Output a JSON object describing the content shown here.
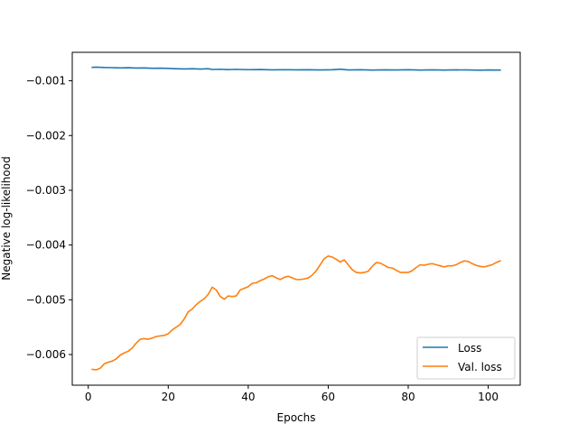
{
  "chart_data": {
    "type": "line",
    "title": "",
    "xlabel": "Epochs",
    "ylabel": "Negative log-likelihood",
    "xlim": [
      -4,
      108
    ],
    "ylim": [
      -0.00656,
      -0.00048
    ],
    "xticks": [
      0,
      20,
      40,
      60,
      80,
      100
    ],
    "xtick_labels": [
      "0",
      "20",
      "40",
      "60",
      "80",
      "100"
    ],
    "yticks": [
      -0.001,
      -0.002,
      -0.003,
      -0.004,
      -0.005,
      -0.006
    ],
    "ytick_labels": [
      "−0.001",
      "−0.002",
      "−0.003",
      "−0.004",
      "−0.005",
      "−0.006"
    ],
    "grid": false,
    "legend_position": "lower right",
    "series": [
      {
        "name": "Loss",
        "color": "#1f77b4",
        "points": [
          [
            1,
            -0.000755
          ],
          [
            2,
            -0.00075
          ],
          [
            4,
            -0.000757
          ],
          [
            6,
            -0.00076
          ],
          [
            8,
            -0.000764
          ],
          [
            10,
            -0.000762
          ],
          [
            12,
            -0.000767
          ],
          [
            14,
            -0.000765
          ],
          [
            16,
            -0.000771
          ],
          [
            18,
            -0.000769
          ],
          [
            20,
            -0.000774
          ],
          [
            22,
            -0.00078
          ],
          [
            24,
            -0.000784
          ],
          [
            26,
            -0.000779
          ],
          [
            28,
            -0.000786
          ],
          [
            30,
            -0.00078
          ],
          [
            31,
            -0.000793
          ],
          [
            33,
            -0.000789
          ],
          [
            35,
            -0.000796
          ],
          [
            37,
            -0.000791
          ],
          [
            40,
            -0.000797
          ],
          [
            43,
            -0.000794
          ],
          [
            46,
            -0.0008
          ],
          [
            49,
            -0.000797
          ],
          [
            52,
            -0.000801
          ],
          [
            55,
            -0.000799
          ],
          [
            58,
            -0.000803
          ],
          [
            61,
            -0.000798
          ],
          [
            63,
            -0.000788
          ],
          [
            65,
            -0.000802
          ],
          [
            68,
            -0.000799
          ],
          [
            71,
            -0.000804
          ],
          [
            74,
            -0.0008
          ],
          [
            77,
            -0.000803
          ],
          [
            80,
            -0.000799
          ],
          [
            83,
            -0.000804
          ],
          [
            86,
            -0.0008
          ],
          [
            89,
            -0.000805
          ],
          [
            92,
            -0.000801
          ],
          [
            95,
            -0.000803
          ],
          [
            98,
            -0.000806
          ],
          [
            100,
            -0.000802
          ],
          [
            103,
            -0.000805
          ]
        ]
      },
      {
        "name": "Val. loss",
        "color": "#ff7f0e",
        "points": [
          [
            1,
            -0.00627
          ],
          [
            2,
            -0.00628
          ],
          [
            3,
            -0.00625
          ],
          [
            4,
            -0.00617
          ],
          [
            5,
            -0.00614
          ],
          [
            6,
            -0.00612
          ],
          [
            7,
            -0.00608
          ],
          [
            8,
            -0.00601
          ],
          [
            9,
            -0.00597
          ],
          [
            10,
            -0.00594
          ],
          [
            11,
            -0.00588
          ],
          [
            12,
            -0.00579
          ],
          [
            13,
            -0.00572
          ],
          [
            14,
            -0.00571
          ],
          [
            15,
            -0.00572
          ],
          [
            16,
            -0.0057
          ],
          [
            17,
            -0.00567
          ],
          [
            18,
            -0.00566
          ],
          [
            19,
            -0.00565
          ],
          [
            20,
            -0.00562
          ],
          [
            21,
            -0.00555
          ],
          [
            22,
            -0.0055
          ],
          [
            23,
            -0.00545
          ],
          [
            24,
            -0.00535
          ],
          [
            25,
            -0.00522
          ],
          [
            26,
            -0.00517
          ],
          [
            27,
            -0.00509
          ],
          [
            28,
            -0.00503
          ],
          [
            29,
            -0.00498
          ],
          [
            30,
            -0.0049
          ],
          [
            31,
            -0.00477
          ],
          [
            32,
            -0.00482
          ],
          [
            33,
            -0.00494
          ],
          [
            34,
            -0.00499
          ],
          [
            35,
            -0.00493
          ],
          [
            36,
            -0.00494
          ],
          [
            37,
            -0.00493
          ],
          [
            38,
            -0.00482
          ],
          [
            39,
            -0.00479
          ],
          [
            40,
            -0.00476
          ],
          [
            41,
            -0.0047
          ],
          [
            42,
            -0.00469
          ],
          [
            43,
            -0.00465
          ],
          [
            44,
            -0.00462
          ],
          [
            45,
            -0.00458
          ],
          [
            46,
            -0.00456
          ],
          [
            47,
            -0.0046
          ],
          [
            48,
            -0.00463
          ],
          [
            49,
            -0.00459
          ],
          [
            50,
            -0.00457
          ],
          [
            51,
            -0.0046
          ],
          [
            52,
            -0.00463
          ],
          [
            53,
            -0.00463
          ],
          [
            54,
            -0.00462
          ],
          [
            55,
            -0.0046
          ],
          [
            56,
            -0.00455
          ],
          [
            57,
            -0.00447
          ],
          [
            58,
            -0.00436
          ],
          [
            59,
            -0.00425
          ],
          [
            60,
            -0.0042
          ],
          [
            61,
            -0.00422
          ],
          [
            62,
            -0.00426
          ],
          [
            63,
            -0.00431
          ],
          [
            64,
            -0.00427
          ],
          [
            65,
            -0.00436
          ],
          [
            66,
            -0.00445
          ],
          [
            67,
            -0.0045
          ],
          [
            68,
            -0.00451
          ],
          [
            69,
            -0.0045
          ],
          [
            70,
            -0.00448
          ],
          [
            71,
            -0.00439
          ],
          [
            72,
            -0.00432
          ],
          [
            73,
            -0.00433
          ],
          [
            74,
            -0.00437
          ],
          [
            75,
            -0.00441
          ],
          [
            76,
            -0.00442
          ],
          [
            77,
            -0.00446
          ],
          [
            78,
            -0.0045
          ],
          [
            79,
            -0.0045
          ],
          [
            80,
            -0.0045
          ],
          [
            81,
            -0.00447
          ],
          [
            82,
            -0.00441
          ],
          [
            83,
            -0.00436
          ],
          [
            84,
            -0.00437
          ],
          [
            85,
            -0.00435
          ],
          [
            86,
            -0.00434
          ],
          [
            87,
            -0.00436
          ],
          [
            88,
            -0.00438
          ],
          [
            89,
            -0.0044
          ],
          [
            90,
            -0.00438
          ],
          [
            91,
            -0.00438
          ],
          [
            92,
            -0.00436
          ],
          [
            93,
            -0.00432
          ],
          [
            94,
            -0.00429
          ],
          [
            95,
            -0.0043
          ],
          [
            96,
            -0.00434
          ],
          [
            97,
            -0.00437
          ],
          [
            98,
            -0.00439
          ],
          [
            99,
            -0.0044
          ],
          [
            100,
            -0.00438
          ],
          [
            101,
            -0.00436
          ],
          [
            102,
            -0.00432
          ],
          [
            103,
            -0.00429
          ]
        ]
      }
    ]
  }
}
